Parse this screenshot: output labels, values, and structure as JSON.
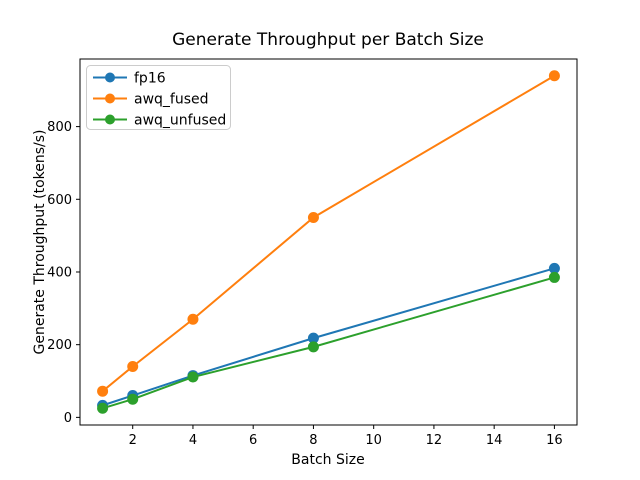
{
  "chart_data": {
    "type": "line",
    "title": "Generate Throughput per Batch Size",
    "xlabel": "Batch Size",
    "ylabel": "Generate Throughput (tokens/s)",
    "x": [
      1,
      2,
      4,
      8,
      16
    ],
    "series": [
      {
        "name": "fp16",
        "color": "#1f77b4",
        "values": [
          33,
          60,
          115,
          218,
          410
        ]
      },
      {
        "name": "awq_fused",
        "color": "#ff7f0e",
        "values": [
          72,
          140,
          270,
          550,
          940
        ]
      },
      {
        "name": "awq_unfused",
        "color": "#2ca02c",
        "values": [
          25,
          50,
          111,
          194,
          385
        ]
      }
    ],
    "x_ticks": [
      2,
      4,
      6,
      8,
      10,
      12,
      14,
      16
    ],
    "y_ticks": [
      0,
      200,
      400,
      600,
      800
    ],
    "xlim": [
      0.25,
      16.75
    ],
    "ylim": [
      -21,
      986
    ],
    "grid": false,
    "marker": "circle",
    "legend_position": "upper left"
  },
  "colors": {
    "background": "#ffffff",
    "spine": "#000000",
    "tick": "#000000",
    "legend_border": "#cccccc",
    "legend_background": "#ffffff"
  }
}
